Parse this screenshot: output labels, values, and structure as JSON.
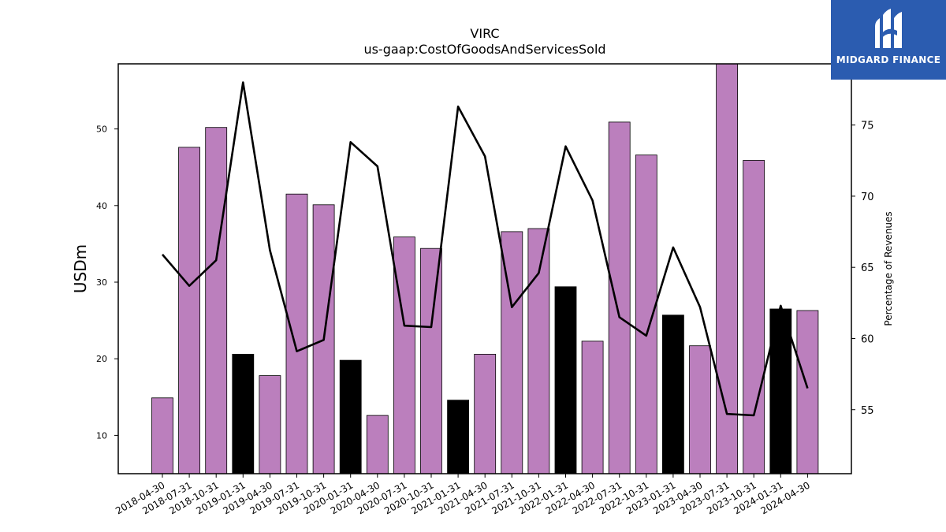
{
  "chart_data": {
    "type": "bar",
    "title": "VIRC",
    "subtitle": "us-gaap:CostOfGoodsAndServicesSold",
    "ylabel": "USDm",
    "y2label": "Percentage of Revenues",
    "ylim": [
      5,
      58.5
    ],
    "y2lim": [
      50.5,
      79.3
    ],
    "yticks": [
      10,
      20,
      30,
      40,
      50
    ],
    "y2ticks": [
      55,
      60,
      65,
      70,
      75
    ],
    "categories": [
      "2018-04-30",
      "2018-07-31",
      "2018-10-31",
      "2019-01-31",
      "2019-04-30",
      "2019-07-31",
      "2019-10-31",
      "2020-01-31",
      "2020-04-30",
      "2020-07-31",
      "2020-10-31",
      "2021-01-31",
      "2021-04-30",
      "2021-07-31",
      "2021-10-31",
      "2022-01-31",
      "2022-04-30",
      "2022-07-31",
      "2022-10-31",
      "2023-01-31",
      "2023-04-30",
      "2023-07-31",
      "2023-10-31",
      "2024-01-31",
      "2024-04-30"
    ],
    "series": [
      {
        "type": "bar",
        "values": [
          14.9,
          47.6,
          50.2,
          20.6,
          17.8,
          41.5,
          40.1,
          19.8,
          12.6,
          35.9,
          34.4,
          14.6,
          20.6,
          36.6,
          37.0,
          29.4,
          22.3,
          50.9,
          46.6,
          25.7,
          21.7,
          59.0,
          45.9,
          26.5,
          26.3
        ],
        "highlight": [
          false,
          false,
          false,
          true,
          false,
          false,
          false,
          true,
          false,
          false,
          false,
          true,
          false,
          false,
          false,
          true,
          false,
          false,
          false,
          true,
          false,
          false,
          false,
          true,
          false
        ],
        "color": "#bb7fbd",
        "highlight_color": "#000000"
      },
      {
        "type": "line",
        "axis": "right",
        "values": [
          65.9,
          63.7,
          65.5,
          78.0,
          66.2,
          59.1,
          59.9,
          73.8,
          72.1,
          60.9,
          60.8,
          76.3,
          72.8,
          62.2,
          64.6,
          73.5,
          69.7,
          61.5,
          60.2,
          66.4,
          62.2,
          54.7,
          54.6,
          62.3,
          56.5
        ],
        "color": "#000000"
      }
    ]
  },
  "logo": {
    "text": "MIDGARD FINANCE",
    "color": "#2b5cb0",
    "icon": "midgard-logo-icon"
  }
}
